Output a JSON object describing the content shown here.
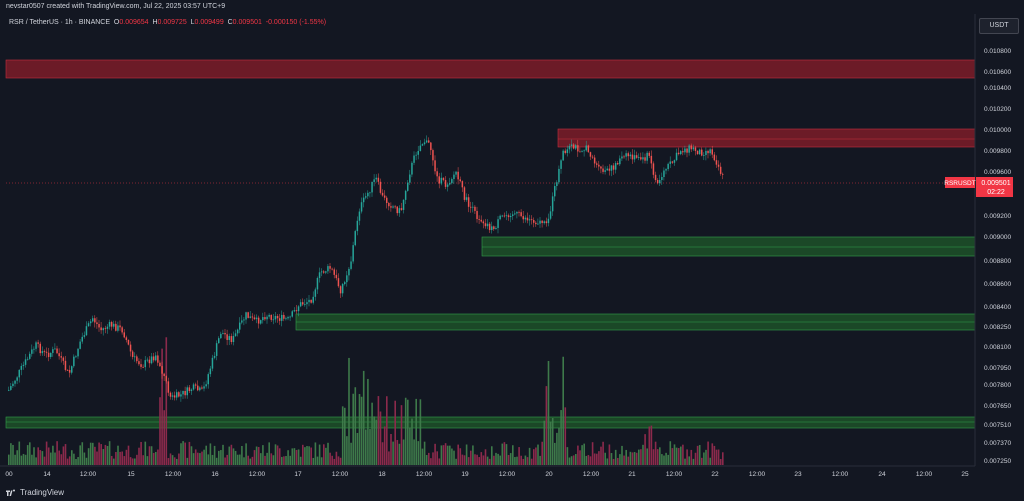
{
  "header": {
    "creator_line": "nevstar0507 created with TradingView.com, Jul 22, 2025 03:57 UTC+9"
  },
  "legend": {
    "symbol": "RSR / TetherUS · 1h · BINANCE",
    "open_label": "O",
    "open": "0.009654",
    "high_label": "H",
    "high": "0.009725",
    "low_label": "L",
    "low": "0.009499",
    "close_label": "C",
    "close": "0.009501",
    "change": "-0.000150 (-1.55%)"
  },
  "currency_button": "USDT",
  "price_axis": {
    "labels": [
      "0.010800",
      "0.010600",
      "0.010400",
      "0.010200",
      "0.010000",
      "0.009800",
      "0.009600",
      "0.009200",
      "0.009000",
      "0.008800",
      "0.008600",
      "0.008400",
      "0.008250",
      "0.008100",
      "0.007950",
      "0.007800",
      "0.007650",
      "0.007510",
      "0.007370",
      "0.007250"
    ],
    "current_price_tag": {
      "symbol": "RSRUSDT",
      "price": "0.009501",
      "countdown": "02:22"
    }
  },
  "time_axis": {
    "labels": [
      "00",
      "14",
      "12:00",
      "15",
      "12:00",
      "16",
      "12:00",
      "17",
      "12:00",
      "18",
      "12:00",
      "19",
      "12:00",
      "20",
      "12:00",
      "21",
      "12:00",
      "22",
      "12:00",
      "23",
      "12:00",
      "24",
      "12:00",
      "25"
    ]
  },
  "zones": {
    "colors": {
      "supply": "#8b1e2a",
      "demand": "#1f5a2a"
    }
  },
  "colors": {
    "bull": "#26a69a",
    "bear": "#ef5350",
    "vol_bull": "#3e7a4a",
    "vol_bear": "#8c2a4c",
    "price_line": "#f23645"
  },
  "footer": {
    "brand": "TradingView",
    "logo_icon": "tradingview-logo"
  }
}
